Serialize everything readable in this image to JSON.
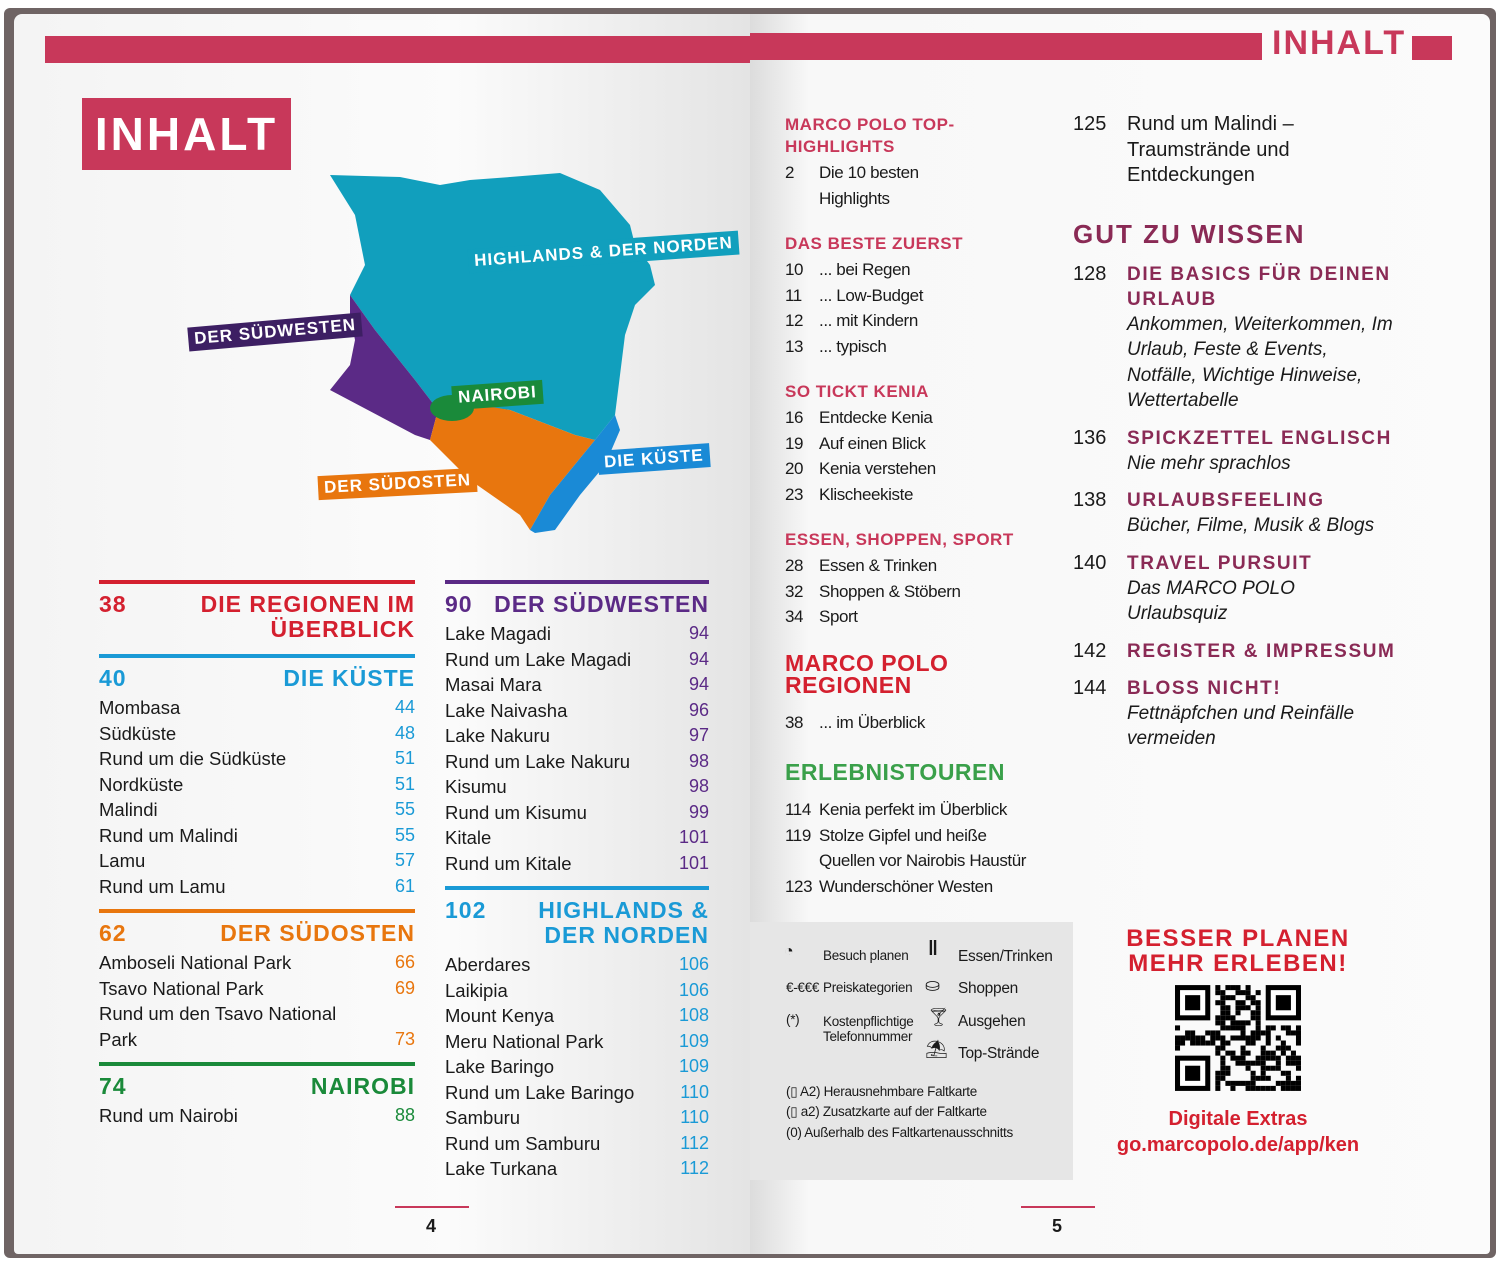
{
  "header": {
    "title_left": "INHALT",
    "title_right": "INHALT",
    "accent": "#c8385a"
  },
  "map": {
    "labels": {
      "north": "HIGHLANDS & DER NORDEN",
      "southwest": "DER SÜDWESTEN",
      "nairobi": "NAIROBI",
      "southeast": "DER SÜDOSTEN",
      "coast": "DIE KÜSTE"
    },
    "colors": {
      "north": "#119fbd",
      "southwest": "#5b2a86",
      "nairobi": "#1a8a3a",
      "southeast": "#e8760e",
      "coast": "#1a8ad6"
    }
  },
  "left_columns": [
    [
      {
        "num": "38",
        "title": "DIE REGIONEN IM ÜBERBLICK",
        "color": "#d4202f",
        "items": []
      },
      {
        "num": "40",
        "title": "DIE KÜSTE",
        "color": "#1a9ad6",
        "items": [
          [
            "Mombasa",
            "44"
          ],
          [
            "Südküste",
            "48"
          ],
          [
            "Rund um die Südküste",
            "51"
          ],
          [
            "Nordküste",
            "51"
          ],
          [
            "Malindi",
            "55"
          ],
          [
            "Rund um Malindi",
            "55"
          ],
          [
            "Lamu",
            "57"
          ],
          [
            "Rund um Lamu",
            "61"
          ]
        ]
      },
      {
        "num": "62",
        "title": "DER SÜDOSTEN",
        "color": "#e8760e",
        "items": [
          [
            "Amboseli National Park",
            "66"
          ],
          [
            "Tsavo National Park",
            "69"
          ],
          [
            "Rund um den Tsavo National Park",
            "73"
          ]
        ]
      },
      {
        "num": "74",
        "title": "NAIROBI",
        "color": "#1a8a3a",
        "items": [
          [
            "Rund um Nairobi",
            "88"
          ]
        ]
      }
    ],
    [
      {
        "num": "90",
        "title": "DER SÜDWESTEN",
        "color": "#5b2a86",
        "items": [
          [
            "Lake Magadi",
            "94"
          ],
          [
            "Rund um Lake Magadi",
            "94"
          ],
          [
            "Masai Mara",
            "94"
          ],
          [
            "Lake Naivasha",
            "96"
          ],
          [
            "Lake Nakuru",
            "97"
          ],
          [
            "Rund um Lake Nakuru",
            "98"
          ],
          [
            "Kisumu",
            "98"
          ],
          [
            "Rund um Kisumu",
            "99"
          ],
          [
            "Kitale",
            "101"
          ],
          [
            "Rund um Kitale",
            "101"
          ]
        ]
      },
      {
        "num": "102",
        "title": "HIGHLANDS & DER NORDEN",
        "color": "#1a9ad6",
        "items": [
          [
            "Aberdares",
            "106"
          ],
          [
            "Laikipia",
            "106"
          ],
          [
            "Mount Kenya",
            "108"
          ],
          [
            "Meru National Park",
            "109"
          ],
          [
            "Lake Baringo",
            "109"
          ],
          [
            "Rund um Lake Baringo",
            "110"
          ],
          [
            "Samburu",
            "110"
          ],
          [
            "Rund um Samburu",
            "112"
          ],
          [
            "Lake Turkana",
            "112"
          ]
        ]
      }
    ]
  ],
  "right_col1": [
    {
      "title": "MARCO POLO TOP-HIGHLIGHTS",
      "color": "#c8385a",
      "size": "small",
      "items": [
        [
          "2",
          "Die 10 besten\nHighlights"
        ]
      ]
    },
    {
      "title": "DAS BESTE ZUERST",
      "color": "#c8385a",
      "size": "small",
      "items": [
        [
          "10",
          "... bei Regen"
        ],
        [
          "11",
          "... Low-Budget"
        ],
        [
          "12",
          "... mit Kindern"
        ],
        [
          "13",
          "... typisch"
        ]
      ]
    },
    {
      "title": "SO TICKT KENIA",
      "color": "#c8385a",
      "size": "small",
      "items": [
        [
          "16",
          "Entdecke Kenia"
        ],
        [
          "19",
          "Auf einen Blick"
        ],
        [
          "20",
          "Kenia verstehen"
        ],
        [
          "23",
          "Klischeekiste"
        ]
      ]
    },
    {
      "title": "ESSEN, SHOPPEN, SPORT",
      "color": "#c8385a",
      "size": "small",
      "items": [
        [
          "28",
          "Essen & Trinken"
        ],
        [
          "32",
          "Shoppen & Stöbern"
        ],
        [
          "34",
          "Sport"
        ]
      ]
    },
    {
      "title": "MARCO POLO REGIONEN",
      "color": "#d4202f",
      "size": "large",
      "items": [
        [
          "38",
          "... im Überblick"
        ]
      ]
    },
    {
      "title": "ERLEBNISTOUREN",
      "color": "#3aa04a",
      "size": "large",
      "items": [
        [
          "114",
          "Kenia perfekt im Überblick"
        ],
        [
          "119",
          "Stolze Gipfel und heiße\nQuellen vor Nairobis Haustür"
        ],
        [
          "123",
          "Wunderschöner Westen"
        ]
      ]
    }
  ],
  "right_col2": {
    "top_item": {
      "num": "125",
      "text": "Rund um Malindi –\nTraumstrände und\nEntdeckungen"
    },
    "section_title": "GUT ZU WISSEN",
    "section_color": "#8a2a55",
    "items": [
      {
        "num": "128",
        "title": "DIE BASICS FÜR DEINEN URLAUB",
        "sub": "Ankommen, Weiterkommen, Im Urlaub, Feste & Events, Notfälle, Wichtige Hinweise, Wettertabelle"
      },
      {
        "num": "136",
        "title": "SPICKZETTEL ENGLISCH",
        "sub": "Nie mehr sprachlos"
      },
      {
        "num": "138",
        "title": "URLAUBSFEELING",
        "sub": "Bücher, Filme, Musik & Blogs"
      },
      {
        "num": "140",
        "title": "TRAVEL PURSUIT",
        "sub": "Das MARCO POLO Urlaubsquiz"
      },
      {
        "num": "142",
        "title": "REGISTER & IMPRESSUM",
        "sub": ""
      },
      {
        "num": "144",
        "title": "BLOSS NICHT!",
        "sub": "Fettnäpfchen und Reinfälle vermeiden"
      }
    ]
  },
  "legend": {
    "visit_icon": "clock-icon",
    "visit": "Besuch planen",
    "price_symbol": "€-€€€",
    "price": "Preiskategorien",
    "phone_symbol": "(*)",
    "phone": "Kostenpflichtige\nTelefonnummer",
    "food_icon": "fork-knife-icon",
    "food": "Essen/Trinken",
    "shop_icon": "basket-icon",
    "shop": "Shoppen",
    "going_out_icon": "cocktail-icon",
    "going_out": "Ausgehen",
    "beach_icon": "beach-umbrella-icon",
    "beach": "Top-Strände",
    "map1": "(▯ A2) Herausnehmbare Faltkarte",
    "map2": "(▯ a2) Zusatzkarte auf der Faltkarte",
    "map3": "(0) Außerhalb des Faltkartenausschnitts"
  },
  "promo": {
    "line1": "BESSER PLANEN",
    "line2": "MEHR ERLEBEN!",
    "extras": "Digitale Extras",
    "url": "go.marcopolo.de/app/ken",
    "color": "#d4202f"
  },
  "page_numbers": {
    "left": "4",
    "right": "5"
  }
}
